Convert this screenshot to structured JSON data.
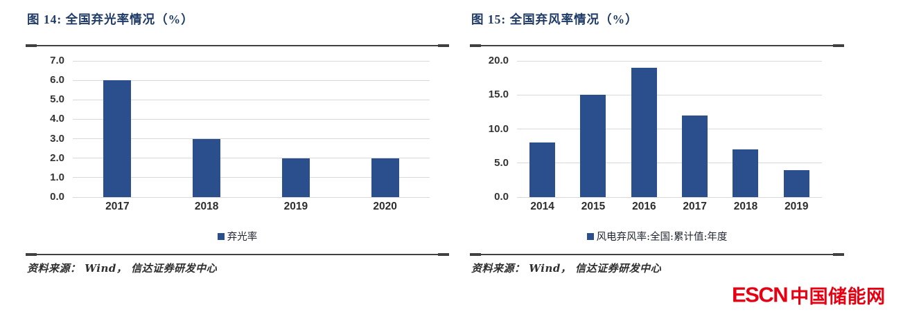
{
  "colors": {
    "bar_blue": "#2b4e8c",
    "title_navy": "#1e3a66",
    "grid_gray": "#d9d9d9",
    "rule_dark": "#404040",
    "axis_text": "#333333",
    "logo_red": "#e60012"
  },
  "chart_data": [
    {
      "type": "bar",
      "title": "图 14:  全国弃光率情况（%）",
      "categories": [
        "2017",
        "2018",
        "2019",
        "2020"
      ],
      "values": [
        6.0,
        3.0,
        2.0,
        2.0
      ],
      "ylim": [
        0,
        7
      ],
      "ytick_labels": [
        "7.0",
        "6.0",
        "5.0",
        "4.0",
        "3.0",
        "2.0",
        "1.0",
        "0.0"
      ],
      "legend": "弃光率",
      "grid": "horizontal",
      "legend_position": "bottom-center",
      "source": "资料来源： Wind， 信达证券研发中心"
    },
    {
      "type": "bar",
      "title": "图 15:  全国弃风率情况（%）",
      "categories": [
        "2014",
        "2015",
        "2016",
        "2017",
        "2018",
        "2019"
      ],
      "values": [
        8.0,
        15.0,
        19.0,
        12.0,
        7.0,
        4.0
      ],
      "ylim": [
        0,
        20
      ],
      "ytick_labels": [
        "20.0",
        "15.0",
        "10.0",
        "5.0",
        "0.0"
      ],
      "legend": "风电弃风率:全国:累计值:年度",
      "grid": "horizontal",
      "legend_position": "bottom-center",
      "source": "资料来源： Wind， 信达证券研发中心"
    }
  ],
  "footer": {
    "logo_escn": "ESCN",
    "logo_cn": "中国储能网"
  }
}
